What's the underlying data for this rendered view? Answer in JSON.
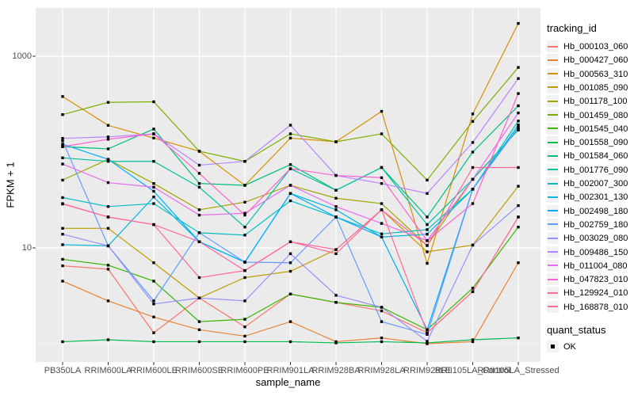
{
  "chart_data": {
    "type": "line",
    "title": "",
    "xlabel": "sample_name",
    "ylabel": "FPKM + 1",
    "y_scale": "log10",
    "ylim": [
      0.6,
      3200
    ],
    "grid": true,
    "panel_bg": "#EBEBEB",
    "grid_color": "#FFFFFF",
    "tick_label_color": "#4D4D4D",
    "point_color": "#000000",
    "point_shape": "square",
    "y_ticks": [
      {
        "value": 1000,
        "label": "1000"
      },
      {
        "value": 10,
        "label": "10"
      }
    ],
    "y_minor": [
      100,
      1
    ],
    "categories": [
      "PB350LA",
      "RRIM600LA",
      "RRIM600LE",
      "RRIM600SE",
      "RRIM600PE",
      "RRIM901LA",
      "RRIM928BA",
      "RRIM928LA",
      "RRIM928LE",
      "RRII105LA_Control",
      "RRII105LA_Stressed"
    ],
    "series": [
      {
        "name": "Hb_000103_060",
        "color": "#F8766D",
        "values": [
          6.5,
          6.0,
          1.3,
          3.0,
          1.5,
          3.3,
          2.7,
          2.2,
          1.3,
          3.5,
          21
        ]
      },
      {
        "name": "Hb_000427_060",
        "color": "#EA8331",
        "values": [
          4.5,
          2.8,
          1.9,
          1.4,
          1.2,
          1.7,
          1.05,
          1.15,
          1.0,
          1.05,
          7.0
        ]
      },
      {
        "name": "Hb_000563_310",
        "color": "#D89000",
        "values": [
          380,
          190,
          140,
          102,
          45,
          140,
          128,
          266,
          6.9,
          250,
          2200
        ]
      },
      {
        "name": "Hb_001085_090",
        "color": "#C09B00",
        "values": [
          16,
          16,
          7.0,
          3.0,
          4.9,
          5.7,
          9.6,
          25,
          9.1,
          10.7,
          44
        ]
      },
      {
        "name": "Hb_001178_100",
        "color": "#A3A500",
        "values": [
          51,
          84,
          47,
          25,
          30,
          45,
          33,
          29,
          10.6,
          52,
          170
        ]
      },
      {
        "name": "Hb_001459_080",
        "color": "#7CAE00",
        "values": [
          246,
          330,
          335,
          102,
          80,
          155,
          128,
          155,
          51,
          209,
          764
        ]
      },
      {
        "name": "Hb_001545_040",
        "color": "#39B600",
        "values": [
          7.6,
          6.6,
          4.5,
          1.7,
          1.8,
          3.3,
          2.7,
          2.4,
          1.4,
          3.8,
          16.5
        ]
      },
      {
        "name": "Hb_001558_090",
        "color": "#00BB4E",
        "values": [
          1.05,
          1.1,
          1.05,
          1.05,
          1.05,
          1.05,
          1.02,
          1.05,
          1.02,
          1.1,
          1.15
        ]
      },
      {
        "name": "Hb_001584_060",
        "color": "#00BF7D",
        "values": [
          114,
          108,
          174,
          47,
          45,
          74,
          40,
          69,
          21,
          100,
          304
        ]
      },
      {
        "name": "Hb_001776_090",
        "color": "#00C1A3",
        "values": [
          87,
          80,
          80,
          43,
          16.5,
          67,
          40,
          69,
          17.5,
          52,
          171
        ]
      },
      {
        "name": "Hb_002007_300",
        "color": "#00BFC4",
        "values": [
          33.5,
          27,
          29,
          14.4,
          13.6,
          31,
          21,
          14,
          15.5,
          41,
          211
        ]
      },
      {
        "name": "Hb_002301_130",
        "color": "#00B8E0",
        "values": [
          10.8,
          10.5,
          34,
          11.6,
          7.1,
          37,
          25,
          13,
          13.9,
          41,
          192
        ]
      },
      {
        "name": "Hb_002498_180",
        "color": "#00ACFC",
        "values": [
          121,
          84,
          39,
          11.6,
          7.1,
          37,
          21,
          13,
          1.4,
          41,
          181
        ]
      },
      {
        "name": "Hb_002759_180",
        "color": "#619CFF",
        "values": [
          131,
          10.5,
          2.8,
          14.4,
          7.1,
          7.0,
          21,
          1.7,
          1.25,
          41,
          181
        ]
      },
      {
        "name": "Hb_003029_080",
        "color": "#9590FF",
        "values": [
          13.9,
          10.5,
          2.6,
          3.0,
          2.8,
          8.7,
          3.2,
          2.4,
          1.06,
          10.7,
          27.6
        ]
      },
      {
        "name": "Hb_009486_150",
        "color": "#B983FF",
        "values": [
          139,
          144,
          155,
          73,
          80,
          191,
          57,
          47,
          37,
          126,
          585
        ]
      },
      {
        "name": "Hb_011004_080",
        "color": "#E76BF3",
        "values": [
          75,
          48,
          43,
          22,
          23,
          45,
          27,
          18,
          11.9,
          52,
          256
        ]
      },
      {
        "name": "Hb_047823_010",
        "color": "#FD61D1",
        "values": [
          114,
          136,
          155,
          60,
          22,
          67,
          57,
          54,
          11.9,
          29,
          408
        ]
      },
      {
        "name": "Hb_129924_010",
        "color": "#FF67A4",
        "values": [
          29,
          21,
          17.5,
          11.6,
          5.8,
          11.6,
          9.6,
          25,
          10.6,
          69,
          69
        ]
      },
      {
        "name": "Hb_168878_010",
        "color": "#FF6B96",
        "values": [
          28.7,
          21,
          17.5,
          4.9,
          5.8,
          11.6,
          8.7,
          25,
          1.3,
          3.5,
          21
        ]
      }
    ],
    "legend": {
      "position": "right",
      "series_title": "tracking_id",
      "status_title": "quant_status",
      "status_items": [
        {
          "label": "OK"
        }
      ]
    }
  }
}
